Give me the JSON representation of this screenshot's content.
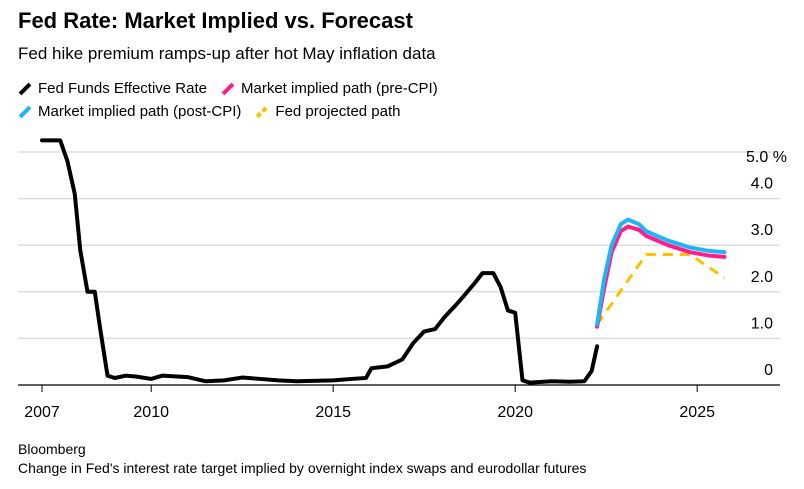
{
  "chart_data": {
    "type": "line",
    "title": "Fed Rate: Market Implied vs. Forecast",
    "subtitle": "Fed hike premium ramps-up after hot May inflation data",
    "source": "Bloomberg",
    "note": "Change in Fed's interest rate target implied by overnight index swaps and eurodollar futures",
    "ylim": [
      0,
      5
    ],
    "xlim": [
      2006.35,
      2027.3
    ],
    "y_ticks": [
      {
        "v": 0,
        "label": "0"
      },
      {
        "v": 1,
        "label": "1.0"
      },
      {
        "v": 2,
        "label": "2.0"
      },
      {
        "v": 3,
        "label": "3.0"
      },
      {
        "v": 4,
        "label": "4.0"
      },
      {
        "v": 5,
        "label": "5.0 %"
      }
    ],
    "x_ticks": [
      {
        "v": 2007,
        "label": "2007"
      },
      {
        "v": 2010,
        "label": "2010"
      },
      {
        "v": 2015,
        "label": "2015"
      },
      {
        "v": 2020,
        "label": "2020"
      },
      {
        "v": 2025,
        "label": "2025"
      }
    ],
    "legend_position": "top-left",
    "series": [
      {
        "name": "Fed Funds Effective Rate",
        "color": "#000000",
        "dashed": false,
        "points": [
          [
            2007,
            5.25
          ],
          [
            2007.5,
            5.25
          ],
          [
            2007.7,
            4.8
          ],
          [
            2007.9,
            4.1
          ],
          [
            2008.05,
            2.9
          ],
          [
            2008.25,
            2.0
          ],
          [
            2008.45,
            2.0
          ],
          [
            2008.6,
            1.2
          ],
          [
            2008.8,
            0.2
          ],
          [
            2009,
            0.15
          ],
          [
            2009.3,
            0.2
          ],
          [
            2009.6,
            0.18
          ],
          [
            2010,
            0.13
          ],
          [
            2010.3,
            0.2
          ],
          [
            2011,
            0.17
          ],
          [
            2011.5,
            0.08
          ],
          [
            2012,
            0.1
          ],
          [
            2012.5,
            0.16
          ],
          [
            2013,
            0.13
          ],
          [
            2013.5,
            0.1
          ],
          [
            2014,
            0.08
          ],
          [
            2015,
            0.1
          ],
          [
            2015.5,
            0.13
          ],
          [
            2015.9,
            0.15
          ],
          [
            2016.05,
            0.36
          ],
          [
            2016.5,
            0.4
          ],
          [
            2016.9,
            0.55
          ],
          [
            2017.2,
            0.9
          ],
          [
            2017.5,
            1.15
          ],
          [
            2017.8,
            1.2
          ],
          [
            2018.05,
            1.45
          ],
          [
            2018.35,
            1.7
          ],
          [
            2018.6,
            1.92
          ],
          [
            2018.9,
            2.2
          ],
          [
            2019.1,
            2.4
          ],
          [
            2019.4,
            2.4
          ],
          [
            2019.6,
            2.1
          ],
          [
            2019.8,
            1.6
          ],
          [
            2020.0,
            1.55
          ],
          [
            2020.2,
            0.1
          ],
          [
            2020.4,
            0.05
          ],
          [
            2021,
            0.08
          ],
          [
            2021.5,
            0.07
          ],
          [
            2021.9,
            0.08
          ],
          [
            2022.1,
            0.3
          ],
          [
            2022.25,
            0.83
          ]
        ]
      },
      {
        "name": "Market implied path (pre-CPI)",
        "color": "#ff1d8e",
        "dashed": false,
        "points": [
          [
            2022.25,
            1.25
          ],
          [
            2022.45,
            2.1
          ],
          [
            2022.65,
            2.85
          ],
          [
            2022.9,
            3.3
          ],
          [
            2023.1,
            3.4
          ],
          [
            2023.4,
            3.33
          ],
          [
            2023.6,
            3.2
          ],
          [
            2024.2,
            3.0
          ],
          [
            2024.8,
            2.85
          ],
          [
            2025.3,
            2.78
          ],
          [
            2025.75,
            2.75
          ]
        ]
      },
      {
        "name": "Market implied path (post-CPI)",
        "color": "#1fb5f5",
        "dashed": false,
        "points": [
          [
            2022.25,
            1.3
          ],
          [
            2022.45,
            2.3
          ],
          [
            2022.65,
            3.0
          ],
          [
            2022.9,
            3.45
          ],
          [
            2023.1,
            3.55
          ],
          [
            2023.4,
            3.45
          ],
          [
            2023.6,
            3.3
          ],
          [
            2024.2,
            3.1
          ],
          [
            2024.8,
            2.95
          ],
          [
            2025.3,
            2.88
          ],
          [
            2025.75,
            2.85
          ]
        ]
      },
      {
        "name": "Fed projected path",
        "color": "#fcc200",
        "dashed": true,
        "points": [
          [
            2022.25,
            1.3
          ],
          [
            2023.6,
            2.8
          ],
          [
            2024.8,
            2.8
          ],
          [
            2025.75,
            2.3
          ]
        ]
      }
    ]
  }
}
